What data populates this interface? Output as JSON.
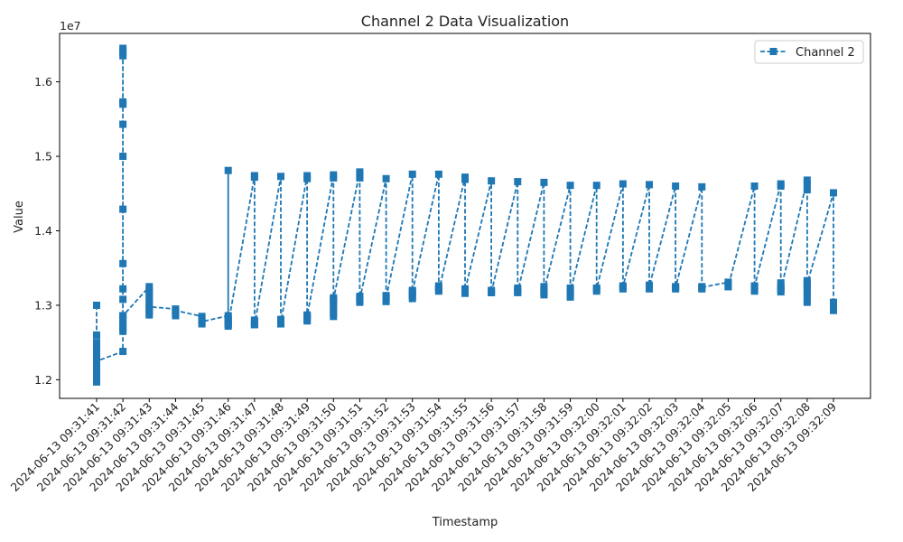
{
  "chart_data": {
    "type": "line",
    "title": "Channel 2 Data Visualization",
    "xlabel": "Timestamp",
    "ylabel": "Value",
    "y_offset_label": "1e7",
    "ylim": [
      11750000,
      16650000
    ],
    "yticks": [
      12000000,
      13000000,
      14000000,
      15000000,
      16000000
    ],
    "ytick_labels": [
      "1.2",
      "1.3",
      "1.4",
      "1.5",
      "1.6"
    ],
    "x_tick_labels": [
      "2024-06-13 09:31:41",
      "2024-06-13 09:31:42",
      "2024-06-13 09:31:43",
      "2024-06-13 09:31:44",
      "2024-06-13 09:31:45",
      "2024-06-13 09:31:46",
      "2024-06-13 09:31:47",
      "2024-06-13 09:31:48",
      "2024-06-13 09:31:49",
      "2024-06-13 09:31:50",
      "2024-06-13 09:31:51",
      "2024-06-13 09:31:52",
      "2024-06-13 09:31:53",
      "2024-06-13 09:31:54",
      "2024-06-13 09:31:55",
      "2024-06-13 09:31:56",
      "2024-06-13 09:31:57",
      "2024-06-13 09:31:58",
      "2024-06-13 09:31:59",
      "2024-06-13 09:32:00",
      "2024-06-13 09:32:01",
      "2024-06-13 09:32:02",
      "2024-06-13 09:32:03",
      "2024-06-13 09:32:04",
      "2024-06-13 09:32:05",
      "2024-06-13 09:32:06",
      "2024-06-13 09:32:07",
      "2024-06-13 09:32:08",
      "2024-06-13 09:32:09"
    ],
    "legend": {
      "placement": "top-right"
    },
    "grid": false,
    "series": [
      {
        "name": "Channel 2",
        "color": "#1f77b4",
        "line_style": "dashed",
        "marker": "square",
        "groups": [
          {
            "time": "2024-06-13 09:31:41",
            "values": [
              13000000,
              12600000,
              12500000,
              12450000,
              12400000,
              12350000,
              12300000,
              12250000,
              12200000,
              12150000,
              12100000,
              12050000,
              12000000,
              11970000,
              12250000
            ]
          },
          {
            "time": "2024-06-13 09:31:42",
            "values": [
              12380000,
              16450000,
              16400000,
              16350000,
              15730000,
              15700000,
              15430000,
              15000000,
              14290000,
              13560000,
              13220000,
              13080000,
              12860000,
              12800000,
              12750000,
              12700000,
              12650000,
              12860000
            ]
          },
          {
            "time": "2024-06-13 09:31:43",
            "values": [
              13250000,
              13200000,
              13150000,
              13100000,
              13050000,
              13000000,
              12950000,
              12900000,
              12870000,
              12980000
            ]
          },
          {
            "time": "2024-06-13 09:31:44",
            "values": [
              12950000,
              12920000,
              12890000,
              12860000,
              12930000
            ]
          },
          {
            "time": "2024-06-13 09:31:45",
            "values": [
              12850000,
              12810000,
              12780000,
              12750000,
              12780000
            ]
          },
          {
            "time": "2024-06-13 09:31:46",
            "values": [
              12860000,
              12830000,
              12800000,
              12780000,
              12750000,
              12720000,
              14810000,
              12740000
            ]
          },
          {
            "time": "2024-06-13 09:31:47",
            "values": [
              14740000,
              14720000,
              12800000,
              12770000,
              12740000,
              12740000
            ]
          },
          {
            "time": "2024-06-13 09:31:48",
            "values": [
              14730000,
              12810000,
              12780000,
              12750000,
              12770000
            ]
          },
          {
            "time": "2024-06-13 09:31:49",
            "values": [
              14740000,
              14700000,
              12870000,
              12840000,
              12810000,
              12790000,
              12850000
            ]
          },
          {
            "time": "2024-06-13 09:31:50",
            "values": [
              14750000,
              14710000,
              13100000,
              13050000,
              13000000,
              12950000,
              12900000,
              12850000,
              13080000
            ]
          },
          {
            "time": "2024-06-13 09:31:51",
            "values": [
              14790000,
              14750000,
              14710000,
              13120000,
              13080000,
              13040000,
              13080000
            ]
          },
          {
            "time": "2024-06-13 09:31:52",
            "values": [
              14700000,
              13130000,
              13090000,
              13050000,
              13100000
            ]
          },
          {
            "time": "2024-06-13 09:31:53",
            "values": [
              14760000,
              13200000,
              13160000,
              13120000,
              13090000,
              13180000
            ]
          },
          {
            "time": "2024-06-13 09:31:54",
            "values": [
              14760000,
              13260000,
              13230000,
              13200000,
              13190000
            ]
          },
          {
            "time": "2024-06-13 09:31:55",
            "values": [
              14720000,
              14690000,
              13220000,
              13190000,
              13160000,
              13200000
            ]
          },
          {
            "time": "2024-06-13 09:31:56",
            "values": [
              14670000,
              13200000,
              13170000,
              13170000
            ]
          },
          {
            "time": "2024-06-13 09:31:57",
            "values": [
              14660000,
              13230000,
              13200000,
              13170000,
              13180000
            ]
          },
          {
            "time": "2024-06-13 09:31:58",
            "values": [
              14650000,
              13250000,
              13210000,
              13170000,
              13140000,
              13190000
            ]
          },
          {
            "time": "2024-06-13 09:31:59",
            "values": [
              14610000,
              13230000,
              13190000,
              13150000,
              13110000,
              13180000
            ]
          },
          {
            "time": "2024-06-13 09:32:00",
            "values": [
              14610000,
              13230000,
              13190000,
              13220000
            ]
          },
          {
            "time": "2024-06-13 09:32:01",
            "values": [
              14630000,
              13260000,
              13220000,
              13250000
            ]
          },
          {
            "time": "2024-06-13 09:32:02",
            "values": [
              14620000,
              13270000,
              13240000,
              13220000,
              13250000
            ]
          },
          {
            "time": "2024-06-13 09:32:03",
            "values": [
              14600000,
              13250000,
              13220000,
              13240000
            ]
          },
          {
            "time": "2024-06-13 09:32:04",
            "values": [
              14590000,
              13250000,
              13220000,
              13240000
            ]
          },
          {
            "time": "2024-06-13 09:32:05",
            "values": [
              13310000,
              13280000,
              13250000,
              13250000
            ]
          },
          {
            "time": "2024-06-13 09:32:06",
            "values": [
              14600000,
              13260000,
              13220000,
              13190000,
              13250000
            ]
          },
          {
            "time": "2024-06-13 09:32:07",
            "values": [
              14630000,
              14600000,
              13300000,
              13260000,
              13220000,
              13180000,
              13210000
            ]
          },
          {
            "time": "2024-06-13 09:32:08",
            "values": [
              14680000,
              14620000,
              14550000,
              13330000,
              13280000,
              13220000,
              13170000,
              13110000,
              13040000,
              13290000
            ]
          },
          {
            "time": "2024-06-13 09:32:09",
            "values": [
              14510000,
              13040000,
              13000000,
              12960000,
              12930000,
              13020000
            ]
          }
        ]
      }
    ]
  }
}
